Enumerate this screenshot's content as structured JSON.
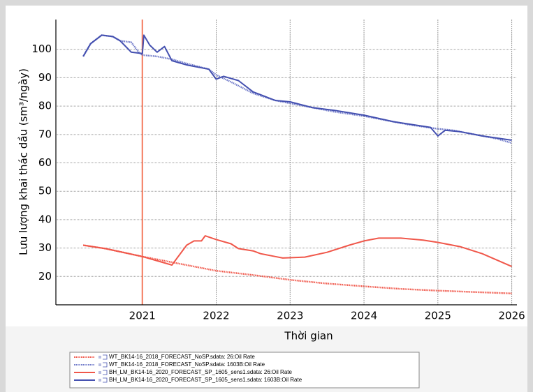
{
  "chart_data": {
    "type": "line",
    "x_label": "Thời gian",
    "y_label": "Lưu lượng khai thác dầu (sm³/ngày)",
    "xlim": [
      2019.83,
      2026.07
    ],
    "ylim": [
      10,
      110.5
    ],
    "xticks": [
      2021,
      2022,
      2023,
      2024,
      2025,
      2026
    ],
    "yticks": [
      20,
      30,
      40,
      50,
      60,
      70,
      80,
      90,
      100
    ],
    "grid": true,
    "vlines": [
      {
        "x": 2021,
        "color": "#f4795b"
      }
    ],
    "series": [
      {
        "name": "WT_BK14-16_2018_FORECAST_NoSP.sdata: 26:Oil Rate",
        "color": "#f0574a",
        "dashed": true,
        "x": [
          2020.2,
          2020.5,
          2021,
          2021.5,
          2022,
          2022.5,
          2023,
          2023.5,
          2024,
          2024.5,
          2025,
          2025.5,
          2026
        ],
        "values": [
          31,
          29.8,
          27,
          24.5,
          22,
          20.5,
          18.8,
          17.5,
          16.5,
          15.6,
          15,
          14.5,
          14
        ]
      },
      {
        "name": "WT_BK14-16_2018_FORECAST_NoSP.sdata: 1603B:Oil Rate",
        "color": "#6e78c8",
        "dashed": true,
        "x": [
          2020.2,
          2020.3,
          2020.45,
          2020.6,
          2020.7,
          2020.85,
          2020.95,
          2021,
          2021.2,
          2021.4,
          2021.6,
          2021.9,
          2022,
          2022.2,
          2022.5,
          2022.8,
          2023,
          2023.3,
          2023.6,
          2024,
          2024.3,
          2024.6,
          2025,
          2025.2,
          2025.5,
          2025.8,
          2026
        ],
        "values": [
          97.5,
          102,
          105,
          104.5,
          103,
          102.5,
          99,
          98,
          97.5,
          96.5,
          95,
          93,
          91,
          88.5,
          84.5,
          82,
          81,
          79.5,
          78,
          76.5,
          75,
          73.5,
          72,
          71.5,
          70,
          68.5,
          67
        ]
      },
      {
        "name": "BH_LM_BK14-16_2020_FORECAST_SP_1605_sens1.sdata: 26:Oil Rate",
        "color": "#f0574a",
        "dashed": false,
        "x": [
          2020.2,
          2020.5,
          2021,
          2021.4,
          2021.6,
          2021.7,
          2021.8,
          2021.85,
          2022,
          2022.2,
          2022.3,
          2022.5,
          2022.6,
          2022.8,
          2022.9,
          2023.2,
          2023.5,
          2023.8,
          2024,
          2024.2,
          2024.5,
          2024.8,
          2025,
          2025.3,
          2025.6,
          2026
        ],
        "values": [
          31,
          29.8,
          27,
          24,
          31,
          32.5,
          32.5,
          34.3,
          33,
          31.5,
          29.8,
          29,
          28,
          27,
          26.5,
          26.8,
          28.5,
          31,
          32.5,
          33.5,
          33.5,
          32.8,
          32,
          30.5,
          28,
          23.5
        ]
      },
      {
        "name": "BH_LM_BK14-16_2020_FORECAST_SP_1605_sens1.sdata: 1603B:Oil Rate",
        "color": "#4450b0",
        "dashed": false,
        "x": [
          2020.2,
          2020.3,
          2020.45,
          2020.6,
          2020.7,
          2020.85,
          2021,
          2021.02,
          2021.1,
          2021.2,
          2021.3,
          2021.4,
          2021.6,
          2021.9,
          2022,
          2022.1,
          2022.3,
          2022.5,
          2022.6,
          2022.8,
          2023,
          2023.3,
          2023.6,
          2024,
          2024.4,
          2024.9,
          2025,
          2025.1,
          2025.3,
          2025.6,
          2026
        ],
        "values": [
          97.5,
          102,
          105,
          104.5,
          103,
          99,
          98.5,
          105,
          101.5,
          99,
          101,
          96,
          94.5,
          93,
          89.5,
          90.5,
          89,
          85,
          84,
          82,
          81.5,
          79.5,
          78.5,
          76.8,
          74.5,
          72.5,
          69.5,
          71.5,
          71,
          69.5,
          68
        ]
      }
    ]
  }
}
